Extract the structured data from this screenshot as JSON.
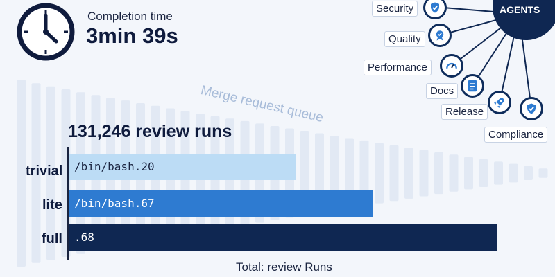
{
  "header": {
    "completion_label": "Completion time",
    "completion_value": "3min 39s"
  },
  "queue": {
    "label": "Merge request queue"
  },
  "chart": {
    "title": "131,246 review runs",
    "footer": "Total: review Runs"
  },
  "chart_data": {
    "type": "bar",
    "orientation": "horizontal",
    "categories": [
      "trivial",
      "lite",
      "full"
    ],
    "value_labels": [
      "/bin/bash.20",
      "/bin/bash.67",
      ".68"
    ],
    "values": [
      0.53,
      0.71,
      1.0
    ],
    "title": "131,246 review runs",
    "xlabel": "Total: review Runs"
  },
  "agents": {
    "hub_label": "AGENTS",
    "items": [
      {
        "label": "Security",
        "icon": "shield-check-icon"
      },
      {
        "label": "Quality",
        "icon": "badge-check-icon"
      },
      {
        "label": "Performance",
        "icon": "gauge-icon"
      },
      {
        "label": "Docs",
        "icon": "document-icon"
      },
      {
        "label": "Release",
        "icon": "rocket-icon"
      },
      {
        "label": "Compliance",
        "icon": "shield-check-icon"
      }
    ]
  },
  "colors": {
    "trivial": "#bcdcf5",
    "lite": "#2e7bd1",
    "full": "#0f2752",
    "hub": "#0f2752",
    "queue_bar": "#e2e9f4"
  }
}
